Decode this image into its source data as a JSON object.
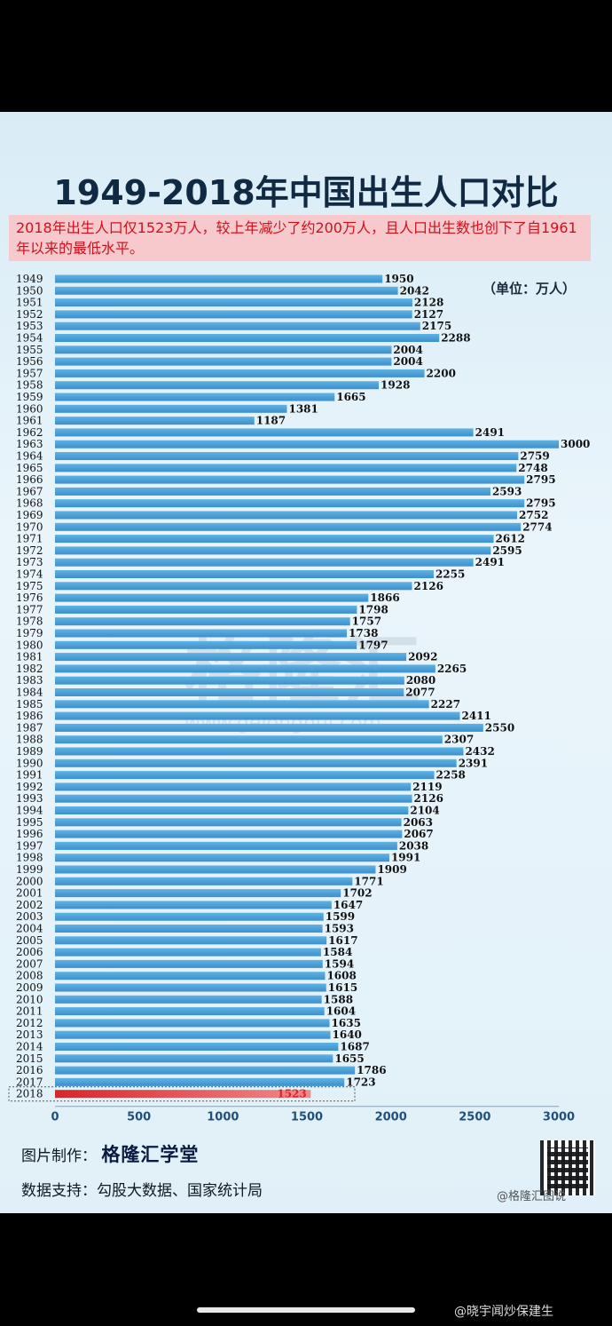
{
  "title": "1949-2018年中国出生人口对比",
  "subtitle": "2018年出生人口仅1523万人，较上年减少了约200万人，且人口出生数也创下了自1961年以来的最低水平。",
  "unit": "（单位：万人）",
  "watermark": "格隆汇",
  "watermark_url": "www.gelonghui.com",
  "credit_maker_label": "图片制作：",
  "credit_maker_brand": "格隆汇学堂",
  "credit_source": "数据支持：勾股大数据、国家统计局",
  "weibo_card": "@格隆汇图说",
  "weibo_bottom": "@晓宇闻炒保建生",
  "colors": {
    "bar": "#3d8fcb",
    "bar_highlight": "#d8262b",
    "label": "#111111"
  },
  "chart_data": {
    "type": "bar",
    "orientation": "horizontal",
    "title": "1949-2018年中国出生人口对比",
    "xlabel": "",
    "ylabel": "",
    "xlim": [
      0,
      3000
    ],
    "xticks": [
      0,
      500,
      1000,
      1500,
      2000,
      2500,
      3000
    ],
    "grid": false,
    "highlight": "2018",
    "categories": [
      "1949",
      "1950",
      "1951",
      "1952",
      "1953",
      "1954",
      "1955",
      "1956",
      "1957",
      "1958",
      "1959",
      "1960",
      "1961",
      "1962",
      "1963",
      "1964",
      "1965",
      "1966",
      "1967",
      "1968",
      "1969",
      "1970",
      "1971",
      "1972",
      "1973",
      "1974",
      "1975",
      "1976",
      "1977",
      "1978",
      "1979",
      "1980",
      "1981",
      "1982",
      "1983",
      "1984",
      "1985",
      "1986",
      "1987",
      "1988",
      "1989",
      "1990",
      "1991",
      "1992",
      "1993",
      "1994",
      "1995",
      "1996",
      "1997",
      "1998",
      "1999",
      "2000",
      "2001",
      "2002",
      "2003",
      "2004",
      "2005",
      "2006",
      "2007",
      "2008",
      "2009",
      "2010",
      "2011",
      "2012",
      "2013",
      "2014",
      "2015",
      "2016",
      "2017",
      "2018"
    ],
    "values": [
      1950,
      2042,
      2128,
      2127,
      2175,
      2288,
      2004,
      2004,
      2200,
      1928,
      1665,
      1381,
      1187,
      2491,
      3000,
      2759,
      2748,
      2795,
      2593,
      2795,
      2752,
      2774,
      2612,
      2595,
      2491,
      2255,
      2126,
      1866,
      1798,
      1757,
      1738,
      1797,
      2092,
      2265,
      2080,
      2077,
      2227,
      2411,
      2550,
      2307,
      2432,
      2391,
      2258,
      2119,
      2126,
      2104,
      2063,
      2067,
      2038,
      1991,
      1909,
      1771,
      1702,
      1647,
      1599,
      1593,
      1617,
      1584,
      1594,
      1608,
      1615,
      1588,
      1604,
      1635,
      1640,
      1687,
      1655,
      1786,
      1723,
      1523
    ]
  }
}
